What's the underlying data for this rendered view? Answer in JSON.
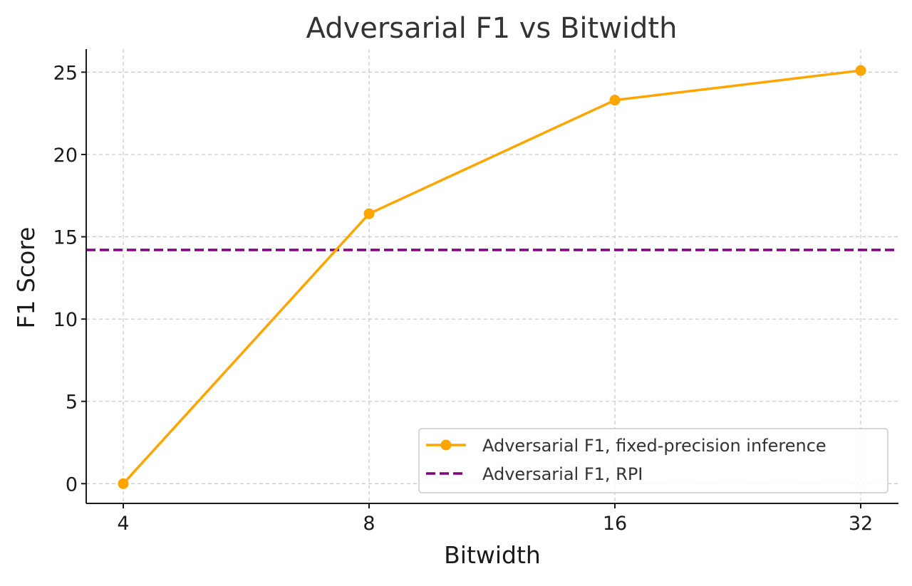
{
  "chart_data": {
    "type": "line",
    "title": "Adversarial F1 vs Bitwidth",
    "xlabel": "Bitwidth",
    "ylabel": "F1 Score",
    "x_scale": "log2",
    "x": [
      4,
      8,
      16,
      32
    ],
    "x_tick_labels": [
      "4",
      "8",
      "16",
      "32"
    ],
    "y_ticks": [
      0,
      5,
      10,
      15,
      20,
      25
    ],
    "y_tick_labels": [
      "0",
      "5",
      "10",
      "15",
      "20",
      "25"
    ],
    "ylim": [
      -1.2,
      26.4
    ],
    "grid": true,
    "legend_position": "lower-right",
    "series": [
      {
        "name": "Adversarial F1, fixed-precision inference",
        "style": "solid-line-with-circle-markers",
        "color": "#FFA500",
        "values": [
          0.0,
          16.4,
          23.3,
          25.1
        ]
      }
    ],
    "reference_lines": [
      {
        "name": "Adversarial F1, RPI",
        "style": "dashed",
        "color": "#800080",
        "y": 14.2
      }
    ]
  }
}
